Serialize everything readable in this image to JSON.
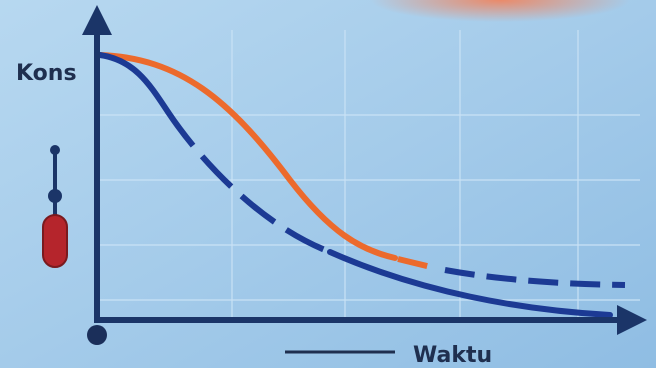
{
  "y_axis_label": "Kons",
  "x_axis_label": "Waktu"
}
